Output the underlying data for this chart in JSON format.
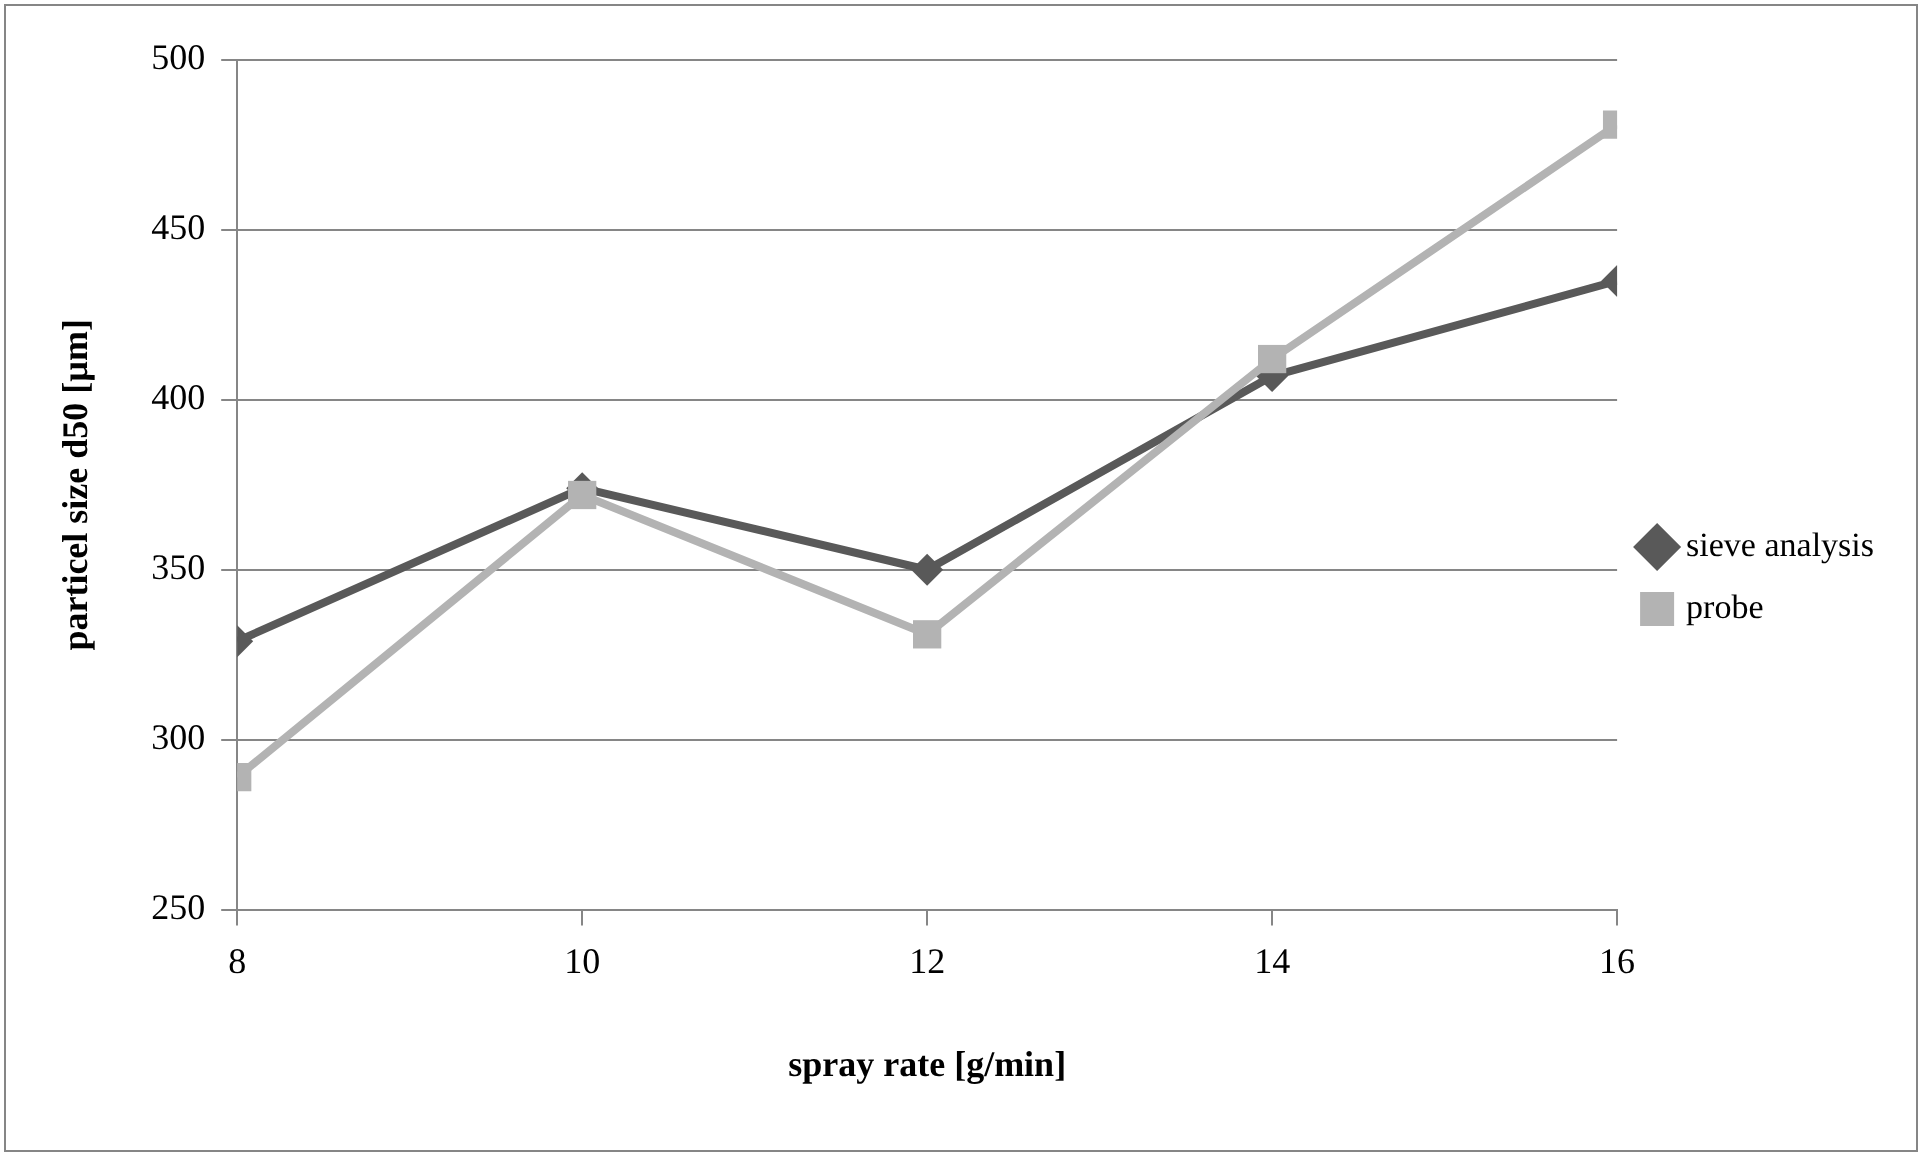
{
  "chart_data": {
    "type": "line",
    "xlabel": "spray rate [g/min]",
    "ylabel": "particel size d50 [µm]",
    "x": [
      8,
      10,
      12,
      14,
      16
    ],
    "xlim": [
      8,
      16
    ],
    "xticks": [
      8,
      10,
      12,
      14,
      16
    ],
    "ylim": [
      250,
      500
    ],
    "yticks": [
      250,
      300,
      350,
      400,
      450,
      500
    ],
    "grid": "y",
    "legend": "right",
    "series": [
      {
        "name": "sieve analysis",
        "color": "#595959",
        "marker": "diamond",
        "values": [
          329,
          374,
          350,
          407,
          435
        ]
      },
      {
        "name": "probe",
        "color": "#b3b3b3",
        "marker": "square",
        "values": [
          289,
          372,
          331,
          412,
          481
        ]
      }
    ]
  }
}
